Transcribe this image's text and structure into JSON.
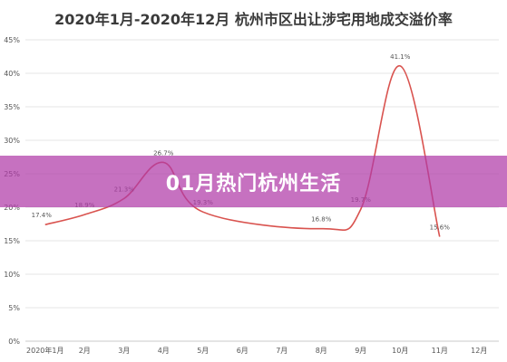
{
  "chart_data": {
    "type": "line",
    "title": "2020年1月-2020年12月 杭州市区出让涉宅用地成交溢价率",
    "categories": [
      "2020年1月",
      "2月",
      "3月",
      "4月",
      "5月",
      "6月",
      "7月",
      "8月",
      "9月",
      "10月",
      "11月",
      "12月"
    ],
    "series": [
      {
        "values": [
          17.4,
          18.9,
          21.3,
          26.7,
          19.3,
          null,
          null,
          16.8,
          19.7,
          41.1,
          15.6,
          null
        ],
        "color": "#d9534f"
      }
    ],
    "data_labels": [
      "17.4%",
      "18.9%",
      "21.3%",
      "26.7%",
      "19.3%",
      "",
      "",
      "16.8%",
      "19.7%",
      "41.1%",
      "15.6%",
      ""
    ],
    "y_ticks": [
      "0%",
      "5%",
      "10%",
      "15%",
      "20%",
      "25%",
      "30%",
      "35%",
      "40%",
      "45%"
    ],
    "ylim": [
      0,
      45
    ],
    "grid": true
  },
  "banner": {
    "text": "01月热门杭州生活",
    "color": "#b03aa8"
  }
}
